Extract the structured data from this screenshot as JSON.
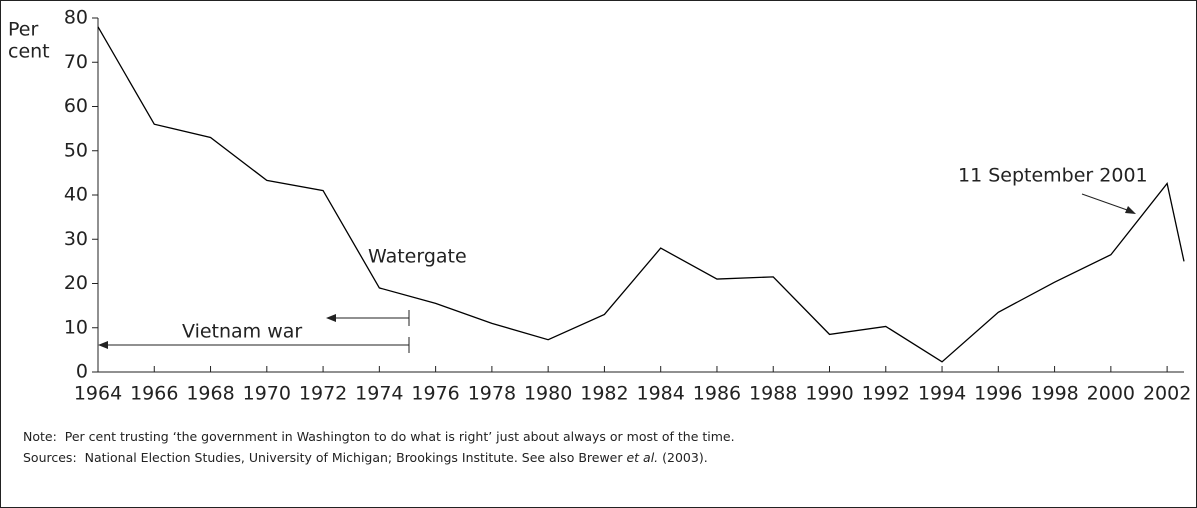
{
  "chart_data": {
    "type": "line",
    "ylabel": [
      "Per",
      "cent"
    ],
    "x": [
      1964,
      1966,
      1968,
      1970,
      1972,
      1974,
      1976,
      1978,
      1980,
      1982,
      1984,
      1986,
      1988,
      1990,
      1992,
      1994,
      1996,
      1998,
      2000,
      2002,
      2002.6
    ],
    "series": [
      {
        "color": "#000000",
        "values": [
          78,
          56,
          53,
          43.3,
          41,
          19,
          15.5,
          11,
          7.3,
          13,
          28,
          21,
          21.5,
          8.5,
          10.3,
          2.3,
          13.5,
          20.3,
          26.5,
          42.6,
          25
        ]
      }
    ],
    "xlim": [
      1964,
      2002.6
    ],
    "xticks": [
      1964,
      1966,
      1968,
      1970,
      1972,
      1974,
      1976,
      1978,
      1980,
      1982,
      1984,
      1986,
      1988,
      1990,
      1992,
      1994,
      1996,
      1998,
      2000,
      2002
    ],
    "ylim": [
      0,
      80
    ],
    "yticks": [
      0,
      10,
      20,
      30,
      40,
      50,
      60,
      70,
      80
    ],
    "annotations": [
      "Watergate",
      "Vietnam war",
      "11 September 2001"
    ],
    "note_label": "Note:",
    "note": "Per cent trusting ‘the government in Washington to do what is right’ just about always or most of the time.",
    "sources_label": "Sources:",
    "sources": [
      "National Election Studies, University of Michigan; Brookings Institute. See also Brewer ",
      "et al.",
      " (2003)."
    ]
  }
}
